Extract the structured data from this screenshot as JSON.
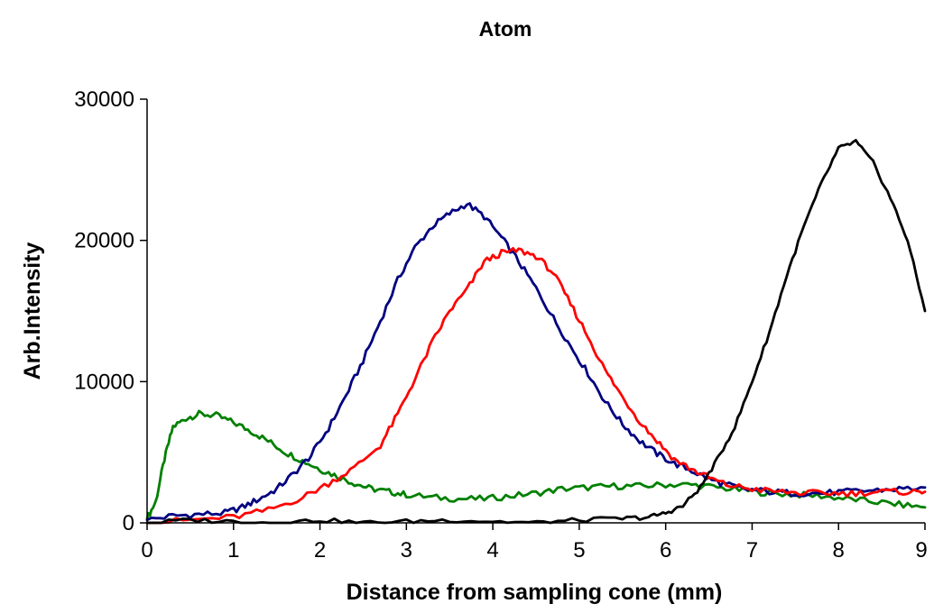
{
  "chart_data": {
    "type": "line",
    "title": "Atom",
    "xlabel": "Distance from sampling cone (mm)",
    "ylabel": "Arb.Intensity",
    "xlim": [
      0,
      9
    ],
    "ylim": [
      0,
      30000
    ],
    "x_ticks": [
      "0",
      "1",
      "2",
      "3",
      "4",
      "5",
      "6",
      "7",
      "8",
      "9"
    ],
    "y_ticks": [
      "0",
      "10000",
      "20000",
      "30000"
    ],
    "grid": false,
    "legend": "none",
    "series": [
      {
        "color": "#008000",
        "x": [
          0,
          0.1,
          0.2,
          0.3,
          0.45,
          0.6,
          0.8,
          1.0,
          1.2,
          1.4,
          1.6,
          1.8,
          2.0,
          2.2,
          2.4,
          2.6,
          2.8,
          3.0,
          3.3,
          3.6,
          3.9,
          4.2,
          4.5,
          4.8,
          5.1,
          5.4,
          5.7,
          6.0,
          6.3,
          6.6,
          6.9,
          7.2,
          7.5,
          7.8,
          8.1,
          8.4,
          8.7,
          9.0
        ],
        "y": [
          300,
          1500,
          4500,
          6800,
          7400,
          7700,
          7600,
          7100,
          6500,
          5800,
          5000,
          4400,
          3800,
          3300,
          2800,
          2400,
          2200,
          2000,
          1800,
          1700,
          1700,
          1900,
          2100,
          2400,
          2500,
          2600,
          2600,
          2700,
          2700,
          2500,
          2300,
          2100,
          2000,
          1900,
          1700,
          1500,
          1300,
          1100
        ]
      },
      {
        "color": "#000080",
        "x": [
          0,
          0.3,
          0.6,
          0.9,
          1.1,
          1.3,
          1.5,
          1.7,
          1.9,
          2.1,
          2.3,
          2.5,
          2.7,
          2.9,
          3.1,
          3.3,
          3.5,
          3.7,
          3.9,
          4.1,
          4.3,
          4.5,
          4.7,
          4.9,
          5.1,
          5.3,
          5.5,
          5.7,
          5.9,
          6.1,
          6.3,
          6.5,
          6.7,
          6.9,
          7.2,
          7.5,
          7.8,
          8.1,
          8.4,
          8.7,
          9.0
        ],
        "y": [
          200,
          500,
          600,
          700,
          1100,
          1700,
          2400,
          3500,
          4800,
          6700,
          9000,
          11500,
          14300,
          17200,
          19500,
          21000,
          21900,
          22600,
          21700,
          20200,
          18500,
          16600,
          14500,
          12500,
          10600,
          8600,
          7000,
          5800,
          4900,
          4200,
          3700,
          3100,
          2700,
          2400,
          2200,
          2100,
          2100,
          2200,
          2300,
          2400,
          2500
        ]
      },
      {
        "color": "#ff0000",
        "x": [
          0,
          0.5,
          1.0,
          1.4,
          1.8,
          2.1,
          2.4,
          2.7,
          2.9,
          3.1,
          3.3,
          3.5,
          3.7,
          3.9,
          4.1,
          4.3,
          4.5,
          4.7,
          4.9,
          5.1,
          5.3,
          5.5,
          5.7,
          5.9,
          6.1,
          6.3,
          6.5,
          6.7,
          7.0,
          7.3,
          7.6,
          7.9,
          8.2,
          8.5,
          8.8,
          9.0
        ],
        "y": [
          0,
          200,
          400,
          900,
          1800,
          2800,
          3900,
          5500,
          7700,
          10200,
          12800,
          15000,
          16500,
          18500,
          19100,
          19300,
          18900,
          17700,
          15500,
          13200,
          10800,
          8900,
          7200,
          5800,
          4500,
          3800,
          3200,
          2700,
          2400,
          2200,
          2100,
          2100,
          2100,
          2200,
          2200,
          2200
        ]
      },
      {
        "color": "#000000",
        "x": [
          0,
          0.5,
          1.0,
          1.5,
          2.0,
          2.5,
          3.0,
          3.5,
          4.0,
          4.5,
          5.0,
          5.5,
          5.8,
          6.0,
          6.2,
          6.4,
          6.6,
          6.8,
          7.0,
          7.2,
          7.4,
          7.6,
          7.8,
          8.0,
          8.2,
          8.4,
          8.6,
          8.8,
          9.0
        ],
        "y": [
          0,
          200,
          100,
          0,
          200,
          0,
          100,
          200,
          100,
          0,
          200,
          300,
          400,
          700,
          1200,
          2500,
          4500,
          6800,
          10000,
          13500,
          17500,
          21000,
          24000,
          26500,
          27000,
          25500,
          23000,
          20000,
          15000
        ]
      }
    ]
  }
}
